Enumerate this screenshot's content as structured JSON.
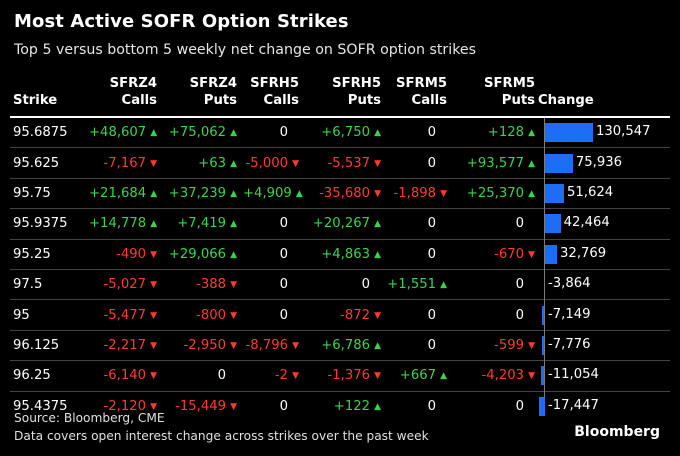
{
  "header": {
    "title": "Most Active SOFR Option Strikes",
    "subtitle": "Top 5 versus bottom 5 weekly net change on SOFR option strikes"
  },
  "footer": {
    "source": "Source: Bloomberg, CME",
    "note": "Data covers open interest change across strikes over the past week",
    "logo": "Bloomberg"
  },
  "colors": {
    "positive": "#38d44e",
    "negative": "#ff3b30",
    "bar": "#1d6ef5",
    "background": "#000000"
  },
  "chart_data": {
    "type": "table",
    "title": "Most Active SOFR Option Strikes",
    "subtitle": "Top 5 versus bottom 5 weekly net change on SOFR option strikes",
    "columns": [
      {
        "key": "strike",
        "line1": "",
        "line2": "Strike"
      },
      {
        "key": "sfrz4_calls",
        "line1": "SFRZ4",
        "line2": "Calls"
      },
      {
        "key": "sfrz4_puts",
        "line1": "SFRZ4",
        "line2": "Puts"
      },
      {
        "key": "sfrh5_calls",
        "line1": "SFRH5",
        "line2": "Calls"
      },
      {
        "key": "sfrh5_puts",
        "line1": "SFRH5",
        "line2": "Puts"
      },
      {
        "key": "sfrm5_calls",
        "line1": "SFRM5",
        "line2": "Calls"
      },
      {
        "key": "sfrm5_puts",
        "line1": "SFRM5",
        "line2": "Puts"
      },
      {
        "key": "change",
        "line1": "",
        "line2": "Change"
      }
    ],
    "rows": [
      {
        "strike": "95.6875",
        "sfrz4_calls": 48607,
        "sfrz4_puts": 75062,
        "sfrh5_calls": 0,
        "sfrh5_puts": 6750,
        "sfrm5_calls": 0,
        "sfrm5_puts": 128,
        "change": 130547
      },
      {
        "strike": "95.625",
        "sfrz4_calls": -7167,
        "sfrz4_puts": 63,
        "sfrh5_calls": -5000,
        "sfrh5_puts": -5537,
        "sfrm5_calls": 0,
        "sfrm5_puts": 93577,
        "change": 75936
      },
      {
        "strike": "95.75",
        "sfrz4_calls": 21684,
        "sfrz4_puts": 37239,
        "sfrh5_calls": 4909,
        "sfrh5_puts": -35680,
        "sfrm5_calls": -1898,
        "sfrm5_puts": 25370,
        "change": 51624
      },
      {
        "strike": "95.9375",
        "sfrz4_calls": 14778,
        "sfrz4_puts": 7419,
        "sfrh5_calls": 0,
        "sfrh5_puts": 20267,
        "sfrm5_calls": 0,
        "sfrm5_puts": 0,
        "change": 42464
      },
      {
        "strike": "95.25",
        "sfrz4_calls": -490,
        "sfrz4_puts": 29066,
        "sfrh5_calls": 0,
        "sfrh5_puts": 4863,
        "sfrm5_calls": 0,
        "sfrm5_puts": -670,
        "change": 32769
      },
      {
        "strike": "97.5",
        "sfrz4_calls": -5027,
        "sfrz4_puts": -388,
        "sfrh5_calls": 0,
        "sfrh5_puts": 0,
        "sfrm5_calls": 1551,
        "sfrm5_puts": 0,
        "change": -3864
      },
      {
        "strike": "95",
        "sfrz4_calls": -5477,
        "sfrz4_puts": -800,
        "sfrh5_calls": 0,
        "sfrh5_puts": -872,
        "sfrm5_calls": 0,
        "sfrm5_puts": 0,
        "change": -7149
      },
      {
        "strike": "96.125",
        "sfrz4_calls": -2217,
        "sfrz4_puts": -2950,
        "sfrh5_calls": -8796,
        "sfrh5_puts": 6786,
        "sfrm5_calls": 0,
        "sfrm5_puts": -599,
        "change": -7776
      },
      {
        "strike": "96.25",
        "sfrz4_calls": -6140,
        "sfrz4_puts": 0,
        "sfrh5_calls": -2,
        "sfrh5_puts": -1376,
        "sfrm5_calls": 667,
        "sfrm5_puts": -4203,
        "change": -11054
      },
      {
        "strike": "95.4375",
        "sfrz4_calls": -2120,
        "sfrz4_puts": -15449,
        "sfrh5_calls": 0,
        "sfrh5_puts": 122,
        "sfrm5_calls": 0,
        "sfrm5_puts": 0,
        "change": -17447
      }
    ]
  }
}
